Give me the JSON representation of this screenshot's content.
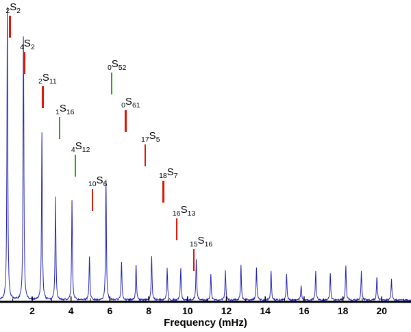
{
  "chart_data": {
    "type": "line",
    "title": "",
    "xlabel": "Frequency (mHz)",
    "ylabel": "",
    "xlim": [
      0.34,
      21.5
    ],
    "x_ticks": [
      2,
      4,
      6,
      8,
      10,
      12,
      14,
      16,
      18,
      20
    ],
    "grid": false,
    "legend": "none",
    "line_color": "#2323bb",
    "axis_color": "#000000",
    "red_tick_color": "#dd1505",
    "green_tick_color": "#1ea51e",
    "peaks": [
      {
        "f": 0.72,
        "a": 1.0
      },
      {
        "f": 1.55,
        "a": 0.9
      },
      {
        "f": 2.5,
        "a": 0.57
      },
      {
        "f": 3.2,
        "a": 0.35
      },
      {
        "f": 4.05,
        "a": 0.34
      },
      {
        "f": 4.95,
        "a": 0.15
      },
      {
        "f": 5.8,
        "a": 0.41
      },
      {
        "f": 6.6,
        "a": 0.13
      },
      {
        "f": 7.35,
        "a": 0.12
      },
      {
        "f": 8.15,
        "a": 0.15
      },
      {
        "f": 8.95,
        "a": 0.11
      },
      {
        "f": 9.65,
        "a": 0.11
      },
      {
        "f": 10.45,
        "a": 0.14
      },
      {
        "f": 11.2,
        "a": 0.09
      },
      {
        "f": 11.95,
        "a": 0.1
      },
      {
        "f": 12.75,
        "a": 0.12
      },
      {
        "f": 13.55,
        "a": 0.11
      },
      {
        "f": 14.3,
        "a": 0.1
      },
      {
        "f": 15.1,
        "a": 0.09
      },
      {
        "f": 15.85,
        "a": 0.05
      },
      {
        "f": 16.6,
        "a": 0.1
      },
      {
        "f": 17.35,
        "a": 0.09
      },
      {
        "f": 18.15,
        "a": 0.12
      },
      {
        "f": 18.95,
        "a": 0.1
      },
      {
        "f": 19.75,
        "a": 0.08
      },
      {
        "f": 20.5,
        "a": 0.07
      }
    ],
    "annotations": [
      {
        "pre": "2",
        "letter": "S",
        "suf": "2",
        "f": 0.85,
        "label_top": 2,
        "tick": "red"
      },
      {
        "pre": "4",
        "letter": "S",
        "suf": "2",
        "f": 1.58,
        "label_top": 55,
        "tick": "red"
      },
      {
        "pre": "2",
        "letter": "S",
        "suf": "11",
        "f": 2.53,
        "label_top": 105,
        "tick": "red"
      },
      {
        "pre": "1",
        "letter": "S",
        "suf": "16",
        "f": 3.41,
        "label_top": 150,
        "tick": "green"
      },
      {
        "pre": "0",
        "letter": "S",
        "suf": "52",
        "f": 6.09,
        "label_top": 85,
        "tick": "green"
      },
      {
        "pre": "0",
        "letter": "S",
        "suf": "61",
        "f": 6.8,
        "label_top": 140,
        "tick": "red"
      },
      {
        "pre": "4",
        "letter": "S",
        "suf": "12",
        "f": 4.22,
        "label_top": 205,
        "tick": "green"
      },
      {
        "pre": "17",
        "letter": "S",
        "suf": "5",
        "f": 7.82,
        "label_top": 190,
        "tick": "red"
      },
      {
        "pre": "10",
        "letter": "S",
        "suf": "6",
        "f": 5.1,
        "label_top": 255,
        "tick": "red"
      },
      {
        "pre": "18",
        "letter": "S",
        "suf": "7",
        "f": 8.74,
        "label_top": 243,
        "tick": "red"
      },
      {
        "pre": "16",
        "letter": "S",
        "suf": "13",
        "f": 9.44,
        "label_top": 298,
        "tick": "red"
      },
      {
        "pre": "15",
        "letter": "S",
        "suf": "16",
        "f": 10.32,
        "label_top": 343,
        "tick": "red"
      }
    ]
  }
}
